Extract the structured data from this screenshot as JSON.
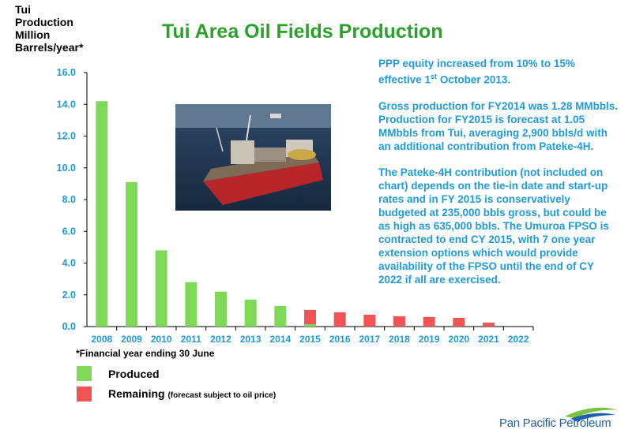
{
  "title": "Tui Area Oil Fields Production",
  "y_axis_label": [
    "Tui",
    "Production",
    "Million",
    "Barrels/year*"
  ],
  "footnote": "*Financial year ending 30 June",
  "legend": {
    "produced": "Produced",
    "remaining": "Remaining",
    "remaining_note": "(forecast subject to oil price)"
  },
  "notes": {
    "p1_a": "PPP equity increased from 10% to 15% effective 1",
    "p1_sup": "st",
    "p1_b": " October 2013.",
    "p2": "Gross production for FY2014 was 1.28 MMbbls. Production for FY2015 is forecast at 1.05 MMbbls from Tui, averaging 2,900 bbls/d with an additional contribution from Pateke-4H.",
    "p3": "The Pateke-4H contribution (not included on chart) depends on the tie-in date and start-up rates and in FY 2015 is conservatively budgeted at 235,000 bbls gross, but could be as high as 635,000 bbls. The Umuroa FPSO is contracted to end CY 2015, with 7 one year extension options which would provide availability of the FPSO until the end of CY 2022 if all are exercised."
  },
  "logo_text": "Pan Pacific Petroleum",
  "colors": {
    "produced": "#7ed957",
    "remaining": "#f05454",
    "title": "#2aa12a",
    "notes": "#1e9be0"
  },
  "chart_data": {
    "type": "bar",
    "stacked": true,
    "categories": [
      "2008",
      "2009",
      "2010",
      "2011",
      "2012",
      "2013",
      "2014",
      "2015",
      "2016",
      "2017",
      "2018",
      "2019",
      "2020",
      "2021",
      "2022"
    ],
    "series": [
      {
        "name": "Produced",
        "values": [
          14.2,
          9.1,
          4.8,
          2.8,
          2.2,
          1.7,
          1.3,
          0.15,
          0,
          0,
          0,
          0,
          0,
          0,
          0
        ]
      },
      {
        "name": "Remaining",
        "values": [
          0,
          0,
          0,
          0,
          0,
          0,
          0,
          0.9,
          0.9,
          0.75,
          0.65,
          0.6,
          0.55,
          0.25,
          0
        ]
      }
    ],
    "ylim": [
      0,
      16
    ],
    "yticks": [
      "0.0",
      "2.0",
      "4.0",
      "6.0",
      "8.0",
      "10.0",
      "12.0",
      "14.0",
      "16.0"
    ],
    "grid": false
  }
}
